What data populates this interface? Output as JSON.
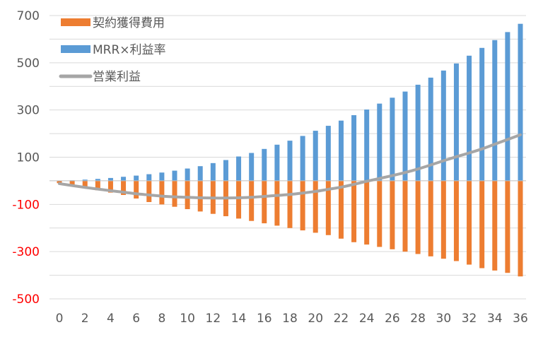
{
  "colors": {
    "acquisition": "#ED7D31",
    "mrr": "#5B9BD5",
    "profit": "#A6A6A6",
    "gridline": "#D9D9D9",
    "tick_positive": "#595959",
    "tick_negative": "#FF0000"
  },
  "legend": {
    "placement": "top-left",
    "items": [
      {
        "label": "契約獲得費用",
        "series": "acquisition",
        "shape": "bar"
      },
      {
        "label": "MRR×利益率",
        "series": "mrr",
        "shape": "bar"
      },
      {
        "label": "営業利益",
        "series": "profit",
        "shape": "line"
      }
    ]
  },
  "chart_data": {
    "type": "bar",
    "title": "",
    "xlabel": "",
    "ylabel": "",
    "ylim": [
      -500,
      700
    ],
    "xlim": [
      0,
      36
    ],
    "grid": true,
    "yticks": [
      700,
      500,
      300,
      100,
      -100,
      -300,
      -500
    ],
    "xticks": [
      0,
      2,
      4,
      6,
      8,
      10,
      12,
      14,
      16,
      18,
      20,
      22,
      24,
      26,
      28,
      30,
      32,
      34,
      36
    ],
    "x": [
      0,
      1,
      2,
      3,
      4,
      5,
      6,
      7,
      8,
      9,
      10,
      11,
      12,
      13,
      14,
      15,
      16,
      17,
      18,
      19,
      20,
      21,
      22,
      23,
      24,
      25,
      26,
      27,
      28,
      29,
      30,
      31,
      32,
      33,
      34,
      35,
      36
    ],
    "series": [
      {
        "key": "acquisition",
        "name": "契約獲得費用",
        "type": "bar",
        "values": [
          -10,
          -20,
          -30,
          -40,
          -50,
          -60,
          -75,
          -90,
          -100,
          -110,
          -120,
          -130,
          -140,
          -150,
          -160,
          -170,
          -180,
          -190,
          -200,
          -210,
          -220,
          -230,
          -245,
          -260,
          -270,
          -280,
          -290,
          -300,
          -310,
          -320,
          -330,
          -340,
          -355,
          -370,
          -380,
          -390,
          -405
        ]
      },
      {
        "key": "mrr",
        "name": "MRR×利益率",
        "type": "bar",
        "values": [
          0,
          2,
          5,
          8,
          12,
          17,
          22,
          28,
          35,
          43,
          52,
          62,
          75,
          88,
          103,
          118,
          135,
          153,
          170,
          190,
          212,
          233,
          255,
          278,
          302,
          327,
          352,
          378,
          407,
          437,
          467,
          497,
          530,
          563,
          596,
          630,
          665
        ]
      },
      {
        "key": "profit",
        "name": "営業利益",
        "type": "line",
        "values": [
          -12,
          -20,
          -28,
          -35,
          -42,
          -48,
          -55,
          -60,
          -65,
          -68,
          -70,
          -72,
          -73,
          -73,
          -72,
          -70,
          -66,
          -62,
          -58,
          -52,
          -45,
          -36,
          -27,
          -15,
          -2,
          10,
          22,
          35,
          50,
          67,
          85,
          102,
          118,
          135,
          155,
          175,
          195
        ]
      }
    ]
  }
}
